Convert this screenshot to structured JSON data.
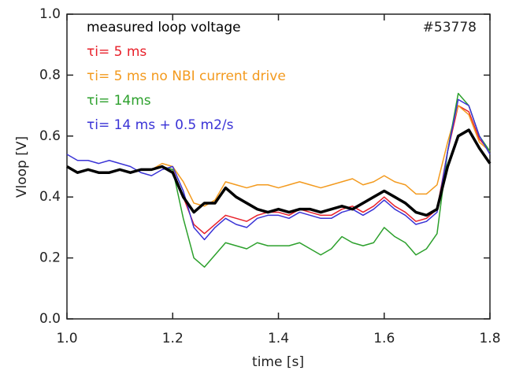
{
  "chart_data": {
    "type": "line",
    "annotation": "#53778",
    "xlabel": "time [s]",
    "ylabel": "Vloop [V]",
    "xlim": [
      1.0,
      1.8
    ],
    "ylim": [
      0.0,
      1.0
    ],
    "xticks": [
      {
        "value": 1.0,
        "label": "1.0"
      },
      1.2,
      1.4,
      1.6,
      1.8
    ],
    "yticks": [
      {
        "value": 0.0,
        "label": "0.0"
      },
      0.2,
      0.4,
      0.6,
      0.8,
      {
        "value": 1.0,
        "label": "1.0"
      }
    ],
    "x": [
      1.0,
      1.02,
      1.04,
      1.06,
      1.08,
      1.1,
      1.12,
      1.14,
      1.16,
      1.18,
      1.2,
      1.22,
      1.24,
      1.26,
      1.28,
      1.3,
      1.32,
      1.34,
      1.36,
      1.38,
      1.4,
      1.42,
      1.44,
      1.46,
      1.48,
      1.5,
      1.52,
      1.54,
      1.56,
      1.58,
      1.6,
      1.62,
      1.64,
      1.66,
      1.68,
      1.7,
      1.72,
      1.74,
      1.76,
      1.78,
      1.8
    ],
    "series": [
      {
        "name": "measured loop voltage",
        "color": "#000000",
        "width": 3.5,
        "values": [
          0.5,
          0.48,
          0.49,
          0.48,
          0.48,
          0.49,
          0.48,
          0.49,
          0.49,
          0.5,
          0.48,
          0.4,
          0.35,
          0.38,
          0.38,
          0.43,
          0.4,
          0.38,
          0.36,
          0.35,
          0.36,
          0.35,
          0.36,
          0.36,
          0.35,
          0.36,
          0.37,
          0.36,
          0.38,
          0.4,
          0.42,
          0.4,
          0.38,
          0.35,
          0.34,
          0.36,
          0.5,
          0.6,
          0.62,
          0.56,
          0.51
        ]
      },
      {
        "name": "τi= 5 ms",
        "color": "#e8202a",
        "width": 1.5,
        "values": [
          0.5,
          0.48,
          0.49,
          0.48,
          0.48,
          0.49,
          0.48,
          0.49,
          0.49,
          0.5,
          0.49,
          0.4,
          0.31,
          0.28,
          0.31,
          0.34,
          0.33,
          0.32,
          0.34,
          0.35,
          0.35,
          0.34,
          0.36,
          0.35,
          0.34,
          0.34,
          0.36,
          0.37,
          0.35,
          0.37,
          0.4,
          0.37,
          0.35,
          0.32,
          0.33,
          0.36,
          0.55,
          0.7,
          0.68,
          0.59,
          0.55
        ]
      },
      {
        "name": "τi= 5 ms no NBI current drive",
        "color": "#f39a1e",
        "width": 1.5,
        "values": [
          0.5,
          0.48,
          0.49,
          0.48,
          0.48,
          0.49,
          0.48,
          0.49,
          0.49,
          0.51,
          0.5,
          0.45,
          0.38,
          0.37,
          0.39,
          0.45,
          0.44,
          0.43,
          0.44,
          0.44,
          0.43,
          0.44,
          0.45,
          0.44,
          0.43,
          0.44,
          0.45,
          0.46,
          0.44,
          0.45,
          0.47,
          0.45,
          0.44,
          0.41,
          0.41,
          0.44,
          0.58,
          0.7,
          0.67,
          0.58,
          0.55
        ]
      },
      {
        "name": "τi= 14ms",
        "color": "#2ca02c",
        "width": 1.5,
        "values": [
          0.5,
          0.48,
          0.49,
          0.48,
          0.48,
          0.49,
          0.48,
          0.49,
          0.49,
          0.5,
          0.49,
          0.33,
          0.2,
          0.17,
          0.21,
          0.25,
          0.24,
          0.23,
          0.25,
          0.24,
          0.24,
          0.24,
          0.25,
          0.23,
          0.21,
          0.23,
          0.27,
          0.25,
          0.24,
          0.25,
          0.3,
          0.27,
          0.25,
          0.21,
          0.23,
          0.28,
          0.55,
          0.74,
          0.7,
          0.6,
          0.55
        ]
      },
      {
        "name": "τi= 14 ms + 0.5 m2/s",
        "color": "#3a33d6",
        "width": 1.5,
        "values": [
          0.54,
          0.52,
          0.52,
          0.51,
          0.52,
          0.51,
          0.5,
          0.48,
          0.47,
          0.49,
          0.5,
          0.42,
          0.3,
          0.26,
          0.3,
          0.33,
          0.31,
          0.3,
          0.33,
          0.34,
          0.34,
          0.33,
          0.35,
          0.34,
          0.33,
          0.33,
          0.35,
          0.36,
          0.34,
          0.36,
          0.39,
          0.36,
          0.34,
          0.31,
          0.32,
          0.35,
          0.55,
          0.72,
          0.7,
          0.6,
          0.54
        ]
      }
    ]
  }
}
